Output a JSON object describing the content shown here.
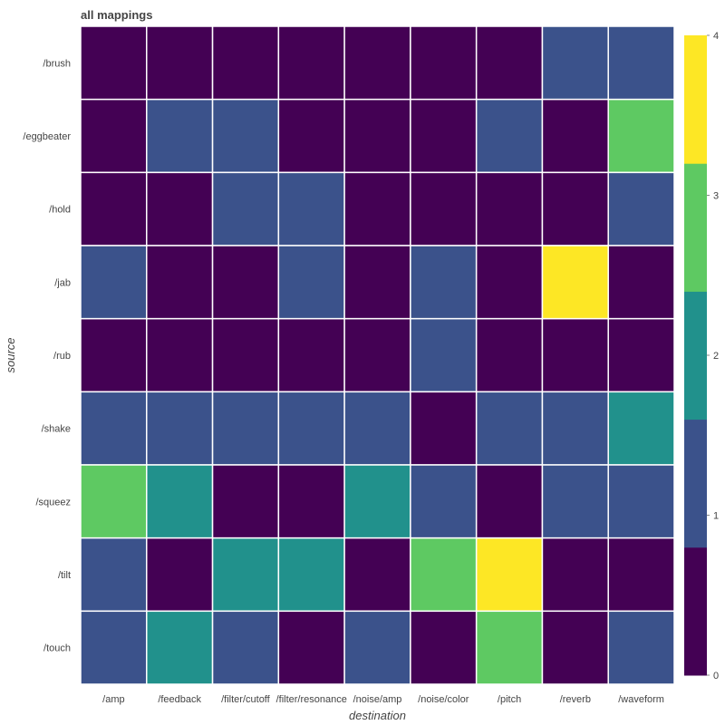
{
  "chart_data": {
    "type": "heatmap",
    "title": "all mappings",
    "xlabel": "destination",
    "ylabel": "source",
    "x_categories": [
      "/amp",
      "/feedback",
      "/filter/cutoff",
      "/filter/resonance",
      "/noise/amp",
      "/noise/color",
      "/pitch",
      "/reverb",
      "/waveform"
    ],
    "y_categories": [
      "/brush",
      "/eggbeater",
      "/hold",
      "/jab",
      "/rub",
      "/shake",
      "/squeez",
      "/tilt",
      "/touch"
    ],
    "values": [
      [
        0,
        0,
        0,
        0,
        0,
        0,
        0,
        1,
        1
      ],
      [
        0,
        1,
        1,
        0,
        0,
        0,
        1,
        0,
        3
      ],
      [
        0,
        0,
        1,
        1,
        0,
        0,
        0,
        0,
        1
      ],
      [
        1,
        0,
        0,
        1,
        0,
        1,
        0,
        4,
        0
      ],
      [
        0,
        0,
        0,
        0,
        0,
        1,
        0,
        0,
        0
      ],
      [
        1,
        1,
        1,
        1,
        1,
        0,
        1,
        1,
        2
      ],
      [
        3,
        2,
        0,
        0,
        2,
        1,
        0,
        1,
        1
      ],
      [
        1,
        0,
        2,
        2,
        0,
        3,
        4,
        0,
        0
      ],
      [
        1,
        2,
        1,
        0,
        1,
        0,
        3,
        0,
        1
      ]
    ],
    "color_range": [
      0,
      4
    ],
    "colorbar_ticks": [
      0,
      1,
      2,
      3,
      4
    ],
    "colors": [
      "#440154",
      "#3b528b",
      "#21918c",
      "#5ec962",
      "#fde725"
    ],
    "cell_border_color": "#ffffff",
    "legend_placement": "right"
  }
}
